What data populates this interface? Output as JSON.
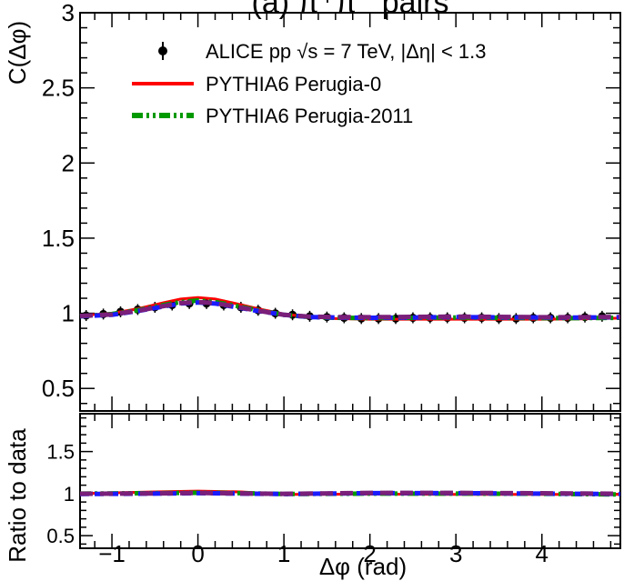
{
  "chart_data": {
    "type": "line",
    "title": "(a) π⁺π⁻ pairs",
    "xlabel": "Δφ (rad)",
    "xlim": [
      -1.3708,
      4.9124
    ],
    "xticks": [
      -1,
      0,
      1,
      2,
      3,
      4
    ],
    "xtick_labels": [
      "−1",
      "0",
      "1",
      "2",
      "3",
      "4"
    ],
    "legend_position": "top-left",
    "colors": {
      "data": "#000000",
      "perugia0": "#ff0000",
      "perugia2011": "#009900",
      "extra_blue": "#1a1aff",
      "extra_purple": "#7a1f7a"
    },
    "main_panel": {
      "ylabel": "C(Δφ)",
      "ylim": [
        0.35,
        3.0
      ],
      "yticks": [
        0.5,
        1,
        1.5,
        2,
        2.5,
        3
      ],
      "ytick_labels": [
        "0.5",
        "1",
        "1.5",
        "2",
        "2.5",
        "3"
      ],
      "series": [
        {
          "name": "ALICE pp √s = 7 TeV, |Δη| < 1.3",
          "kind": "points",
          "x": [
            -1.3,
            -1.1,
            -0.9,
            -0.7,
            -0.5,
            -0.3,
            -0.1,
            0.1,
            0.3,
            0.5,
            0.7,
            0.9,
            1.1,
            1.3,
            1.5,
            1.7,
            1.9,
            2.1,
            2.3,
            2.5,
            2.7,
            2.9,
            3.1,
            3.3,
            3.5,
            3.7,
            3.9,
            4.1,
            4.3,
            4.5,
            4.7
          ],
          "y": [
            0.985,
            0.995,
            1.01,
            1.025,
            1.04,
            1.055,
            1.065,
            1.065,
            1.055,
            1.04,
            1.02,
            1.0,
            0.99,
            0.98,
            0.975,
            0.97,
            0.965,
            0.965,
            0.965,
            0.97,
            0.97,
            0.97,
            0.97,
            0.97,
            0.965,
            0.965,
            0.97,
            0.97,
            0.97,
            0.975,
            0.98
          ]
        },
        {
          "name": "PYTHIA6 Perugia-0",
          "kind": "line",
          "x": [
            -1.3708,
            -1.0,
            -0.7,
            -0.4,
            -0.2,
            0.0,
            0.2,
            0.4,
            0.7,
            1.0,
            1.3,
            1.6,
            2.0,
            2.5,
            3.0,
            3.5,
            4.0,
            4.5,
            4.9124
          ],
          "y": [
            0.985,
            1.0,
            1.03,
            1.07,
            1.095,
            1.105,
            1.095,
            1.07,
            1.03,
            0.995,
            0.975,
            0.965,
            0.96,
            0.96,
            0.96,
            0.96,
            0.96,
            0.963,
            0.968
          ]
        },
        {
          "name": "PYTHIA6 Perugia-2011",
          "kind": "line",
          "x": [
            -1.3708,
            -1.0,
            -0.7,
            -0.4,
            -0.2,
            0.0,
            0.2,
            0.4,
            0.7,
            1.0,
            1.3,
            1.6,
            2.0,
            2.5,
            3.0,
            3.5,
            4.0,
            4.5,
            4.9124
          ],
          "y": [
            0.98,
            0.995,
            1.02,
            1.055,
            1.075,
            1.085,
            1.075,
            1.055,
            1.02,
            0.99,
            0.975,
            0.97,
            0.968,
            0.97,
            0.972,
            0.97,
            0.968,
            0.968,
            0.97
          ]
        },
        {
          "kind": "line",
          "style": "blue-dash",
          "x": [
            -1.3708,
            -1.0,
            -0.7,
            -0.4,
            -0.2,
            0.0,
            0.2,
            0.4,
            0.7,
            1.0,
            1.3,
            1.6,
            2.0,
            2.5,
            3.0,
            3.5,
            4.0,
            4.5,
            4.9124
          ],
          "y": [
            0.98,
            0.99,
            1.015,
            1.045,
            1.065,
            1.072,
            1.065,
            1.045,
            1.015,
            0.99,
            0.975,
            0.972,
            0.97,
            0.972,
            0.975,
            0.973,
            0.972,
            0.972,
            0.974
          ]
        },
        {
          "kind": "line",
          "style": "purple-dash",
          "x": [
            -1.3708,
            -1.0,
            -0.7,
            -0.4,
            -0.2,
            0.0,
            0.2,
            0.4,
            0.7,
            1.0,
            1.3,
            1.6,
            2.0,
            2.5,
            3.0,
            3.5,
            4.0,
            4.5,
            4.9124
          ],
          "y": [
            0.982,
            0.992,
            1.017,
            1.048,
            1.068,
            1.075,
            1.068,
            1.048,
            1.017,
            0.99,
            0.978,
            0.975,
            0.974,
            0.976,
            0.978,
            0.976,
            0.974,
            0.974,
            0.976
          ]
        }
      ]
    },
    "ratio_panel": {
      "ylabel": "Ratio to data",
      "ylim": [
        0.35,
        1.95
      ],
      "yticks": [
        0.5,
        1,
        1.5
      ],
      "ytick_labels": [
        "0.5",
        "1",
        "1.5"
      ],
      "series": [
        {
          "name": "PYTHIA6 Perugia-0",
          "x": [
            -1.3708,
            -0.5,
            0.0,
            0.5,
            1.0,
            2.0,
            3.0,
            4.0,
            4.9124
          ],
          "y": [
            1.0,
            1.02,
            1.03,
            1.02,
            0.99,
            0.995,
            0.99,
            0.99,
            0.99
          ]
        },
        {
          "name": "PYTHIA6 Perugia-2011",
          "x": [
            -1.3708,
            -0.5,
            0.0,
            0.5,
            1.0,
            2.0,
            3.0,
            4.0,
            4.9124
          ],
          "y": [
            1.0,
            1.005,
            1.01,
            1.005,
            0.995,
            1.0,
            1.0,
            0.998,
            0.99
          ]
        },
        {
          "style": "blue-dash",
          "x": [
            -1.3708,
            -0.5,
            0.0,
            0.5,
            1.0,
            2.0,
            3.0,
            4.0,
            4.9124
          ],
          "y": [
            0.995,
            1.0,
            1.005,
            1.0,
            0.995,
            1.005,
            1.005,
            1.0,
            0.995
          ]
        },
        {
          "style": "purple-dash",
          "x": [
            -1.3708,
            -0.5,
            0.0,
            0.5,
            1.0,
            2.0,
            3.0,
            4.0,
            4.9124
          ],
          "y": [
            0.998,
            1.002,
            1.008,
            1.002,
            0.997,
            1.008,
            1.008,
            1.004,
            0.998
          ]
        }
      ]
    }
  }
}
